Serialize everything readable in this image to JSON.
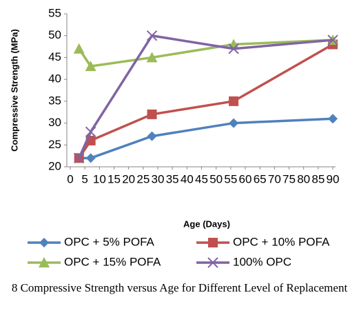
{
  "chart_data": {
    "type": "line",
    "y_label": "Compressive Strength (MPa)",
    "x_label": "Age (Days)",
    "caption": "8 Compressive Strength versus Age for Different Level of Replacement",
    "x": [
      3,
      7,
      28,
      56,
      90
    ],
    "series": [
      {
        "name": "OPC + 5% POFA",
        "color": "#4f81bd",
        "marker": "diamond",
        "values": [
          22,
          22,
          27,
          30,
          31
        ]
      },
      {
        "name": "OPC + 10% POFA",
        "color": "#c0504d",
        "marker": "square",
        "values": [
          22,
          26,
          32,
          35,
          48
        ]
      },
      {
        "name": "OPC + 15% POFA",
        "color": "#9bbb59",
        "marker": "triangle",
        "values": [
          47,
          43,
          45,
          48,
          49
        ]
      },
      {
        "name": "100% OPC",
        "color": "#8064a2",
        "marker": "x",
        "values": [
          22,
          28,
          50,
          47,
          49
        ]
      }
    ],
    "xlim": [
      0,
      90
    ],
    "xticks": [
      0,
      5,
      10,
      15,
      20,
      25,
      30,
      35,
      40,
      45,
      50,
      55,
      60,
      65,
      70,
      75,
      80,
      85,
      90
    ],
    "ylim": [
      20,
      55
    ],
    "yticks": [
      20,
      25,
      30,
      35,
      40,
      45,
      50,
      55
    ],
    "grid": false
  }
}
